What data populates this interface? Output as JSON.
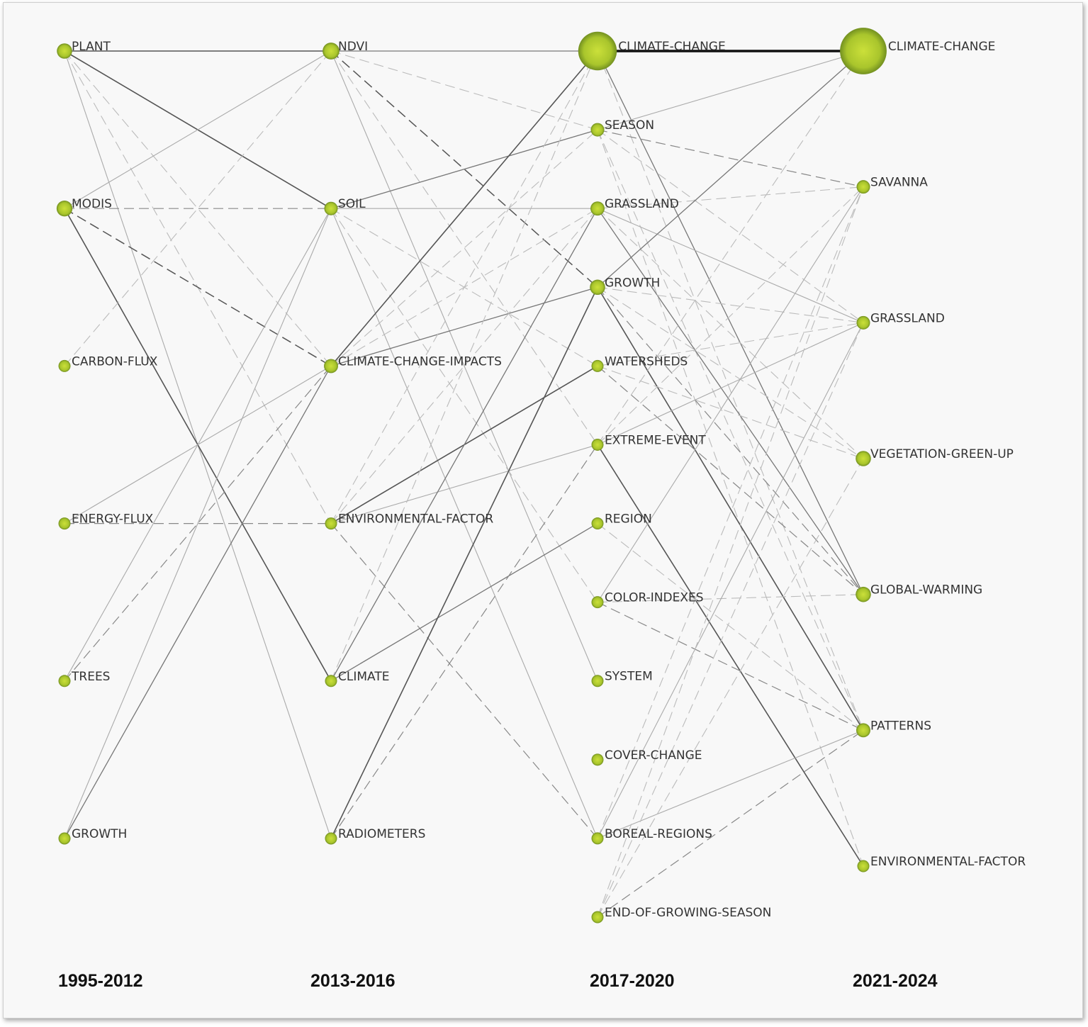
{
  "periods": [
    "1995-2012",
    "2013-2016",
    "2017-2020",
    "2021-2024"
  ],
  "node_color": "#b8d432",
  "columns": [
    [
      {
        "id": "a_plant",
        "label": "PLANT",
        "size": 2
      },
      {
        "id": "a_modis",
        "label": "MODIS",
        "size": 2.2
      },
      {
        "id": "a_carbon",
        "label": "CARBON-FLUX",
        "size": 1
      },
      {
        "id": "a_energy",
        "label": "ENERGY-FLUX",
        "size": 1
      },
      {
        "id": "a_trees",
        "label": "TREES",
        "size": 1
      },
      {
        "id": "a_growth",
        "label": "GROWTH",
        "size": 1
      }
    ],
    [
      {
        "id": "b_ndvi",
        "label": "NDVI",
        "size": 2.6
      },
      {
        "id": "b_soil",
        "label": "SOIL",
        "size": 1.4
      },
      {
        "id": "b_cci",
        "label": "CLIMATE-CHANGE-IMPACTS",
        "size": 1.6
      },
      {
        "id": "b_env",
        "label": "ENVIRONMENTAL-FACTOR",
        "size": 1
      },
      {
        "id": "b_climate",
        "label": "CLIMATE",
        "size": 1
      },
      {
        "id": "b_radio",
        "label": "RADIOMETERS",
        "size": 1
      }
    ],
    [
      {
        "id": "c_cc",
        "label": "CLIMATE-CHANGE",
        "size": 7
      },
      {
        "id": "c_season",
        "label": "SEASON",
        "size": 1.4
      },
      {
        "id": "c_grass",
        "label": "GRASSLAND",
        "size": 1.6
      },
      {
        "id": "c_growth",
        "label": "GROWTH",
        "size": 2
      },
      {
        "id": "c_water",
        "label": "WATERSHEDS",
        "size": 1
      },
      {
        "id": "c_extreme",
        "label": "EXTREME-EVENT",
        "size": 1
      },
      {
        "id": "c_region",
        "label": "REGION",
        "size": 1
      },
      {
        "id": "c_color",
        "label": "COLOR-INDEXES",
        "size": 1
      },
      {
        "id": "c_system",
        "label": "SYSTEM",
        "size": 1
      },
      {
        "id": "c_cover",
        "label": "COVER-CHANGE",
        "size": 1
      },
      {
        "id": "c_boreal",
        "label": "BOREAL-REGIONS",
        "size": 1
      },
      {
        "id": "c_eogs",
        "label": "END-OF-GROWING-SEASON",
        "size": 1
      }
    ],
    [
      {
        "id": "d_cc",
        "label": "CLIMATE-CHANGE",
        "size": 11
      },
      {
        "id": "d_savanna",
        "label": "SAVANNA",
        "size": 1.4
      },
      {
        "id": "d_grass",
        "label": "GRASSLAND",
        "size": 1.4
      },
      {
        "id": "d_vgu",
        "label": "VEGETATION-GREEN-UP",
        "size": 2
      },
      {
        "id": "d_gw",
        "label": "GLOBAL-WARMING",
        "size": 2
      },
      {
        "id": "d_patterns",
        "label": "PATTERNS",
        "size": 1.6
      },
      {
        "id": "d_env",
        "label": "ENVIRONMENTAL-FACTOR",
        "size": 1
      }
    ]
  ],
  "edges": [
    [
      "a_plant",
      "b_ndvi",
      "solid-dark"
    ],
    [
      "a_plant",
      "b_soil",
      "solid-dark"
    ],
    [
      "a_plant",
      "b_radio",
      "solid-light"
    ],
    [
      "a_plant",
      "b_cci",
      "dashed-light"
    ],
    [
      "a_plant",
      "b_env",
      "dashed-light"
    ],
    [
      "a_modis",
      "b_ndvi",
      "solid-light"
    ],
    [
      "a_modis",
      "b_soil",
      "dashed"
    ],
    [
      "a_modis",
      "b_cci",
      "dashed-dark"
    ],
    [
      "a_modis",
      "b_climate",
      "solid-dark"
    ],
    [
      "a_carbon",
      "b_ndvi",
      "dashed-light"
    ],
    [
      "a_energy",
      "b_cci",
      "solid-light"
    ],
    [
      "a_energy",
      "b_env",
      "dashed"
    ],
    [
      "a_trees",
      "b_soil",
      "solid-light"
    ],
    [
      "a_trees",
      "b_cci",
      "dashed"
    ],
    [
      "a_growth",
      "b_soil",
      "solid-light"
    ],
    [
      "a_growth",
      "b_cci",
      "solid"
    ],
    [
      "b_ndvi",
      "c_cc",
      "solid"
    ],
    [
      "b_ndvi",
      "c_growth",
      "dashed-dark"
    ],
    [
      "b_ndvi",
      "c_season",
      "dashed-light"
    ],
    [
      "b_ndvi",
      "c_system",
      "solid-light"
    ],
    [
      "b_ndvi",
      "c_extreme",
      "dashed-light"
    ],
    [
      "b_soil",
      "c_season",
      "solid"
    ],
    [
      "b_soil",
      "c_grass",
      "solid-light"
    ],
    [
      "b_soil",
      "c_boreal",
      "solid-light"
    ],
    [
      "b_soil",
      "c_color",
      "dashed-light"
    ],
    [
      "b_soil",
      "c_water",
      "dashed-light"
    ],
    [
      "b_cci",
      "c_cc",
      "solid-dark"
    ],
    [
      "b_cci",
      "c_growth",
      "solid"
    ],
    [
      "b_cci",
      "c_season",
      "dashed-light"
    ],
    [
      "b_cci",
      "c_grass",
      "dashed-light"
    ],
    [
      "b_env",
      "c_water",
      "solid-dark"
    ],
    [
      "b_env",
      "c_extreme",
      "solid-light"
    ],
    [
      "b_env",
      "c_boreal",
      "dashed"
    ],
    [
      "b_env",
      "c_cc",
      "dashed-light"
    ],
    [
      "b_env",
      "c_grass",
      "dashed-light"
    ],
    [
      "b_climate",
      "c_region",
      "solid"
    ],
    [
      "b_climate",
      "c_grass",
      "solid"
    ],
    [
      "b_climate",
      "c_cc",
      "dashed-light"
    ],
    [
      "b_radio",
      "c_growth",
      "solid-dark"
    ],
    [
      "b_radio",
      "c_extreme",
      "dashed"
    ],
    [
      "c_cc",
      "d_cc",
      "thick"
    ],
    [
      "c_cc",
      "d_gw",
      "solid"
    ],
    [
      "c_cc",
      "d_patterns",
      "dashed-light"
    ],
    [
      "c_season",
      "d_cc",
      "solid-light"
    ],
    [
      "c_season",
      "d_savanna",
      "dashed"
    ],
    [
      "c_season",
      "d_grass",
      "dashed-light"
    ],
    [
      "c_season",
      "d_patterns",
      "dashed-light"
    ],
    [
      "c_season",
      "d_env",
      "dashed-light"
    ],
    [
      "c_grass",
      "d_savanna",
      "dashed-light"
    ],
    [
      "c_grass",
      "d_grass",
      "solid-light"
    ],
    [
      "c_grass",
      "d_gw",
      "solid"
    ],
    [
      "c_grass",
      "d_vgu",
      "dashed-light"
    ],
    [
      "c_growth",
      "d_cc",
      "solid"
    ],
    [
      "c_growth",
      "d_patterns",
      "solid-dark"
    ],
    [
      "c_growth",
      "d_gw",
      "dashed"
    ],
    [
      "c_growth",
      "d_grass",
      "dashed-light"
    ],
    [
      "c_growth",
      "d_vgu",
      "dashed-light"
    ],
    [
      "c_water",
      "d_grass",
      "dashed-light"
    ],
    [
      "c_water",
      "d_vgu",
      "dashed-light"
    ],
    [
      "c_water",
      "d_gw",
      "dashed"
    ],
    [
      "c_extreme",
      "d_grass",
      "solid-light"
    ],
    [
      "c_extreme",
      "d_env",
      "solid-dark"
    ],
    [
      "c_extreme",
      "d_savanna",
      "dashed-light"
    ],
    [
      "c_extreme",
      "d_cc",
      "dashed-light"
    ],
    [
      "c_region",
      "d_patterns",
      "dashed-light"
    ],
    [
      "c_color",
      "d_savanna",
      "solid-light"
    ],
    [
      "c_color",
      "d_gw",
      "dashed-light"
    ],
    [
      "c_color",
      "d_patterns",
      "dashed"
    ],
    [
      "c_boreal",
      "d_patterns",
      "solid-light"
    ],
    [
      "c_boreal",
      "d_savanna",
      "dashed-light"
    ],
    [
      "c_boreal",
      "d_grass",
      "solid-light"
    ],
    [
      "c_eogs",
      "d_savanna",
      "dashed-light"
    ],
    [
      "c_eogs",
      "d_vgu",
      "dashed-light"
    ],
    [
      "c_eogs",
      "d_patterns",
      "dashed"
    ],
    [
      "c_eogs",
      "d_grass",
      "dashed-light"
    ]
  ]
}
